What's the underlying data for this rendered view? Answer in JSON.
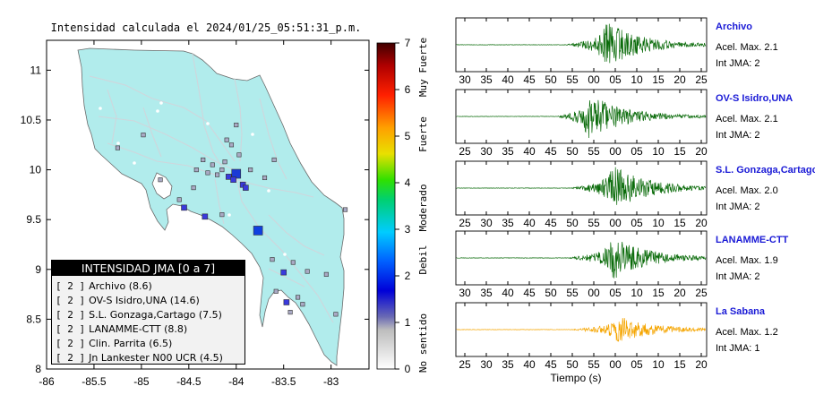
{
  "map": {
    "title": "Intensidad calculada el 2024/01/25_05:51:31_p.m.",
    "x_ticks": [
      "-86",
      "-85.5",
      "-85",
      "-84.5",
      "-84",
      "-83.5",
      "-83"
    ],
    "y_ticks": [
      "8",
      "8.5",
      "9",
      "9.5",
      "10",
      "10.5",
      "11"
    ],
    "xlim": [
      -86,
      -82.6
    ],
    "ylim": [
      8,
      11.3
    ]
  },
  "colorbar": {
    "ticks": [
      "0",
      "1",
      "2",
      "3",
      "4",
      "5",
      "6",
      "7"
    ],
    "labels": [
      "No sentido",
      "Debil",
      "Moderado",
      "Fuerte",
      "Muy Fuerte"
    ]
  },
  "legend": {
    "title": "INTENSIDAD JMA [0 a 7]",
    "items": [
      {
        "level": "[ 2 ]",
        "name": "Archivo (8.6)"
      },
      {
        "level": "[ 2 ]",
        "name": "OV-S Isidro,UNA (14.6)"
      },
      {
        "level": "[ 2 ]",
        "name": "S.L. Gonzaga,Cartago (7.5)"
      },
      {
        "level": "[ 2 ]",
        "name": "LANAMME-CTT (8.8)"
      },
      {
        "level": "[ 2 ]",
        "name": "Clin. Parrita (6.5)"
      },
      {
        "level": "[ 2 ]",
        "name": "Jn Lankester N00 UCR (4.5)"
      }
    ]
  },
  "traces": [
    {
      "name": "Archivo",
      "accel": "Acel. Max. 2.1",
      "int": "Int JMA: 2",
      "ticks": [
        "30",
        "35",
        "40",
        "45",
        "50",
        "55",
        "00",
        "05",
        "10",
        "15",
        "20",
        "25"
      ],
      "color": "#0a6b0a"
    },
    {
      "name": "OV-S Isidro,UNA",
      "accel": "Acel. Max. 2.1",
      "int": "Int JMA: 2",
      "ticks": [
        "25",
        "30",
        "35",
        "40",
        "45",
        "50",
        "55",
        "00",
        "05",
        "10",
        "15",
        "20"
      ],
      "color": "#0a6b0a"
    },
    {
      "name": "S.L. Gonzaga,Cartago",
      "accel": "Acel. Max. 2.0",
      "int": "Int JMA: 2",
      "ticks": [
        "25",
        "30",
        "35",
        "40",
        "45",
        "50",
        "55",
        "00",
        "05",
        "10",
        "15",
        "20"
      ],
      "color": "#0a6b0a"
    },
    {
      "name": "LANAMME-CTT",
      "accel": "Acel. Max. 1.9",
      "int": "Int JMA: 2",
      "ticks": [
        "30",
        "35",
        "40",
        "45",
        "50",
        "55",
        "00",
        "05",
        "10",
        "15",
        "20",
        "25"
      ],
      "color": "#0a6b0a"
    },
    {
      "name": "La Sabana",
      "accel": "Acel. Max. 1.2",
      "int": "Int JMA: 1",
      "ticks": [
        "25",
        "30",
        "35",
        "40",
        "45",
        "50",
        "55",
        "00",
        "05",
        "10",
        "15",
        "20"
      ],
      "color": "#f5a500"
    }
  ],
  "waveform_xlabel": "Tiempo (s)",
  "colors": {
    "land": "#b1ecec",
    "green_trace": "#0a6b0a",
    "orange_trace": "#f5a500",
    "station_name": "#1a1ad6"
  },
  "chart_data": [
    {
      "type": "scatter",
      "title": "Intensidad calculada el 2024/01/25_05:51:31_p.m.",
      "xlabel": "",
      "ylabel": "",
      "xlim": [
        -86,
        -82.6
      ],
      "ylim": [
        8,
        11.3
      ],
      "grid": false,
      "series": [
        {
          "values": [
            {
              "x": -84.0,
              "y": 9.96,
              "jma": 2
            },
            {
              "x": -83.77,
              "y": 9.39,
              "jma": 2
            },
            {
              "x": -84.08,
              "y": 9.93,
              "jma": 2
            },
            {
              "x": -83.93,
              "y": 9.85,
              "jma": 2
            },
            {
              "x": -84.03,
              "y": 9.9,
              "jma": 2
            },
            {
              "x": -83.9,
              "y": 9.82,
              "jma": 2
            },
            {
              "x": -84.15,
              "y": 10.0,
              "jma": 1
            },
            {
              "x": -84.2,
              "y": 9.95,
              "jma": 1
            },
            {
              "x": -84.25,
              "y": 10.05,
              "jma": 1
            },
            {
              "x": -84.12,
              "y": 10.08,
              "jma": 1
            },
            {
              "x": -84.3,
              "y": 9.97,
              "jma": 1
            },
            {
              "x": -83.97,
              "y": 10.15,
              "jma": 1
            },
            {
              "x": -84.05,
              "y": 10.25,
              "jma": 1
            },
            {
              "x": -84.1,
              "y": 10.3,
              "jma": 1
            },
            {
              "x": -84.0,
              "y": 10.45,
              "jma": 1
            },
            {
              "x": -84.35,
              "y": 10.1,
              "jma": 1
            },
            {
              "x": -84.42,
              "y": 10.0,
              "jma": 1
            },
            {
              "x": -83.85,
              "y": 10.0,
              "jma": 1
            },
            {
              "x": -83.7,
              "y": 9.92,
              "jma": 1
            },
            {
              "x": -83.6,
              "y": 10.1,
              "jma": 1
            },
            {
              "x": -84.6,
              "y": 9.7,
              "jma": 1
            },
            {
              "x": -84.55,
              "y": 9.62,
              "jma": 2
            },
            {
              "x": -84.33,
              "y": 9.53,
              "jma": 2
            },
            {
              "x": -84.15,
              "y": 9.55,
              "jma": 1
            },
            {
              "x": -84.45,
              "y": 9.82,
              "jma": 1
            },
            {
              "x": -84.8,
              "y": 9.9,
              "jma": 1
            },
            {
              "x": -85.25,
              "y": 10.22,
              "jma": 1
            },
            {
              "x": -83.5,
              "y": 8.97,
              "jma": 2
            },
            {
              "x": -83.4,
              "y": 9.07,
              "jma": 1
            },
            {
              "x": -83.25,
              "y": 8.98,
              "jma": 1
            },
            {
              "x": -83.05,
              "y": 8.95,
              "jma": 1
            },
            {
              "x": -83.58,
              "y": 8.78,
              "jma": 1
            },
            {
              "x": -83.47,
              "y": 8.67,
              "jma": 2
            },
            {
              "x": -83.35,
              "y": 8.72,
              "jma": 1
            },
            {
              "x": -83.3,
              "y": 8.65,
              "jma": 1
            },
            {
              "x": -83.43,
              "y": 8.57,
              "jma": 1
            },
            {
              "x": -82.95,
              "y": 8.55,
              "jma": 1
            },
            {
              "x": -82.85,
              "y": 9.6,
              "jma": 1
            },
            {
              "x": -83.62,
              "y": 9.1,
              "jma": 1
            },
            {
              "x": -84.98,
              "y": 10.35,
              "jma": 1
            }
          ]
        }
      ]
    },
    {
      "type": "line",
      "title": "",
      "xlabel": "Tiempo (s)",
      "ylabel": "",
      "series": [
        {
          "name": "Archivo",
          "peak": 2.1,
          "onset": 52,
          "peak_at": 63
        },
        {
          "name": "OV-S Isidro,UNA",
          "peak": 2.1,
          "onset": 48,
          "peak_at": 56
        },
        {
          "name": "S.L. Gonzaga,Cartago",
          "peak": 2.0,
          "onset": 51,
          "peak_at": 62
        },
        {
          "name": "LANAMME-CTT",
          "peak": 1.9,
          "onset": 52,
          "peak_at": 64
        },
        {
          "name": "La Sabana",
          "peak": 1.2,
          "onset": 52,
          "peak_at": 62
        }
      ]
    }
  ]
}
